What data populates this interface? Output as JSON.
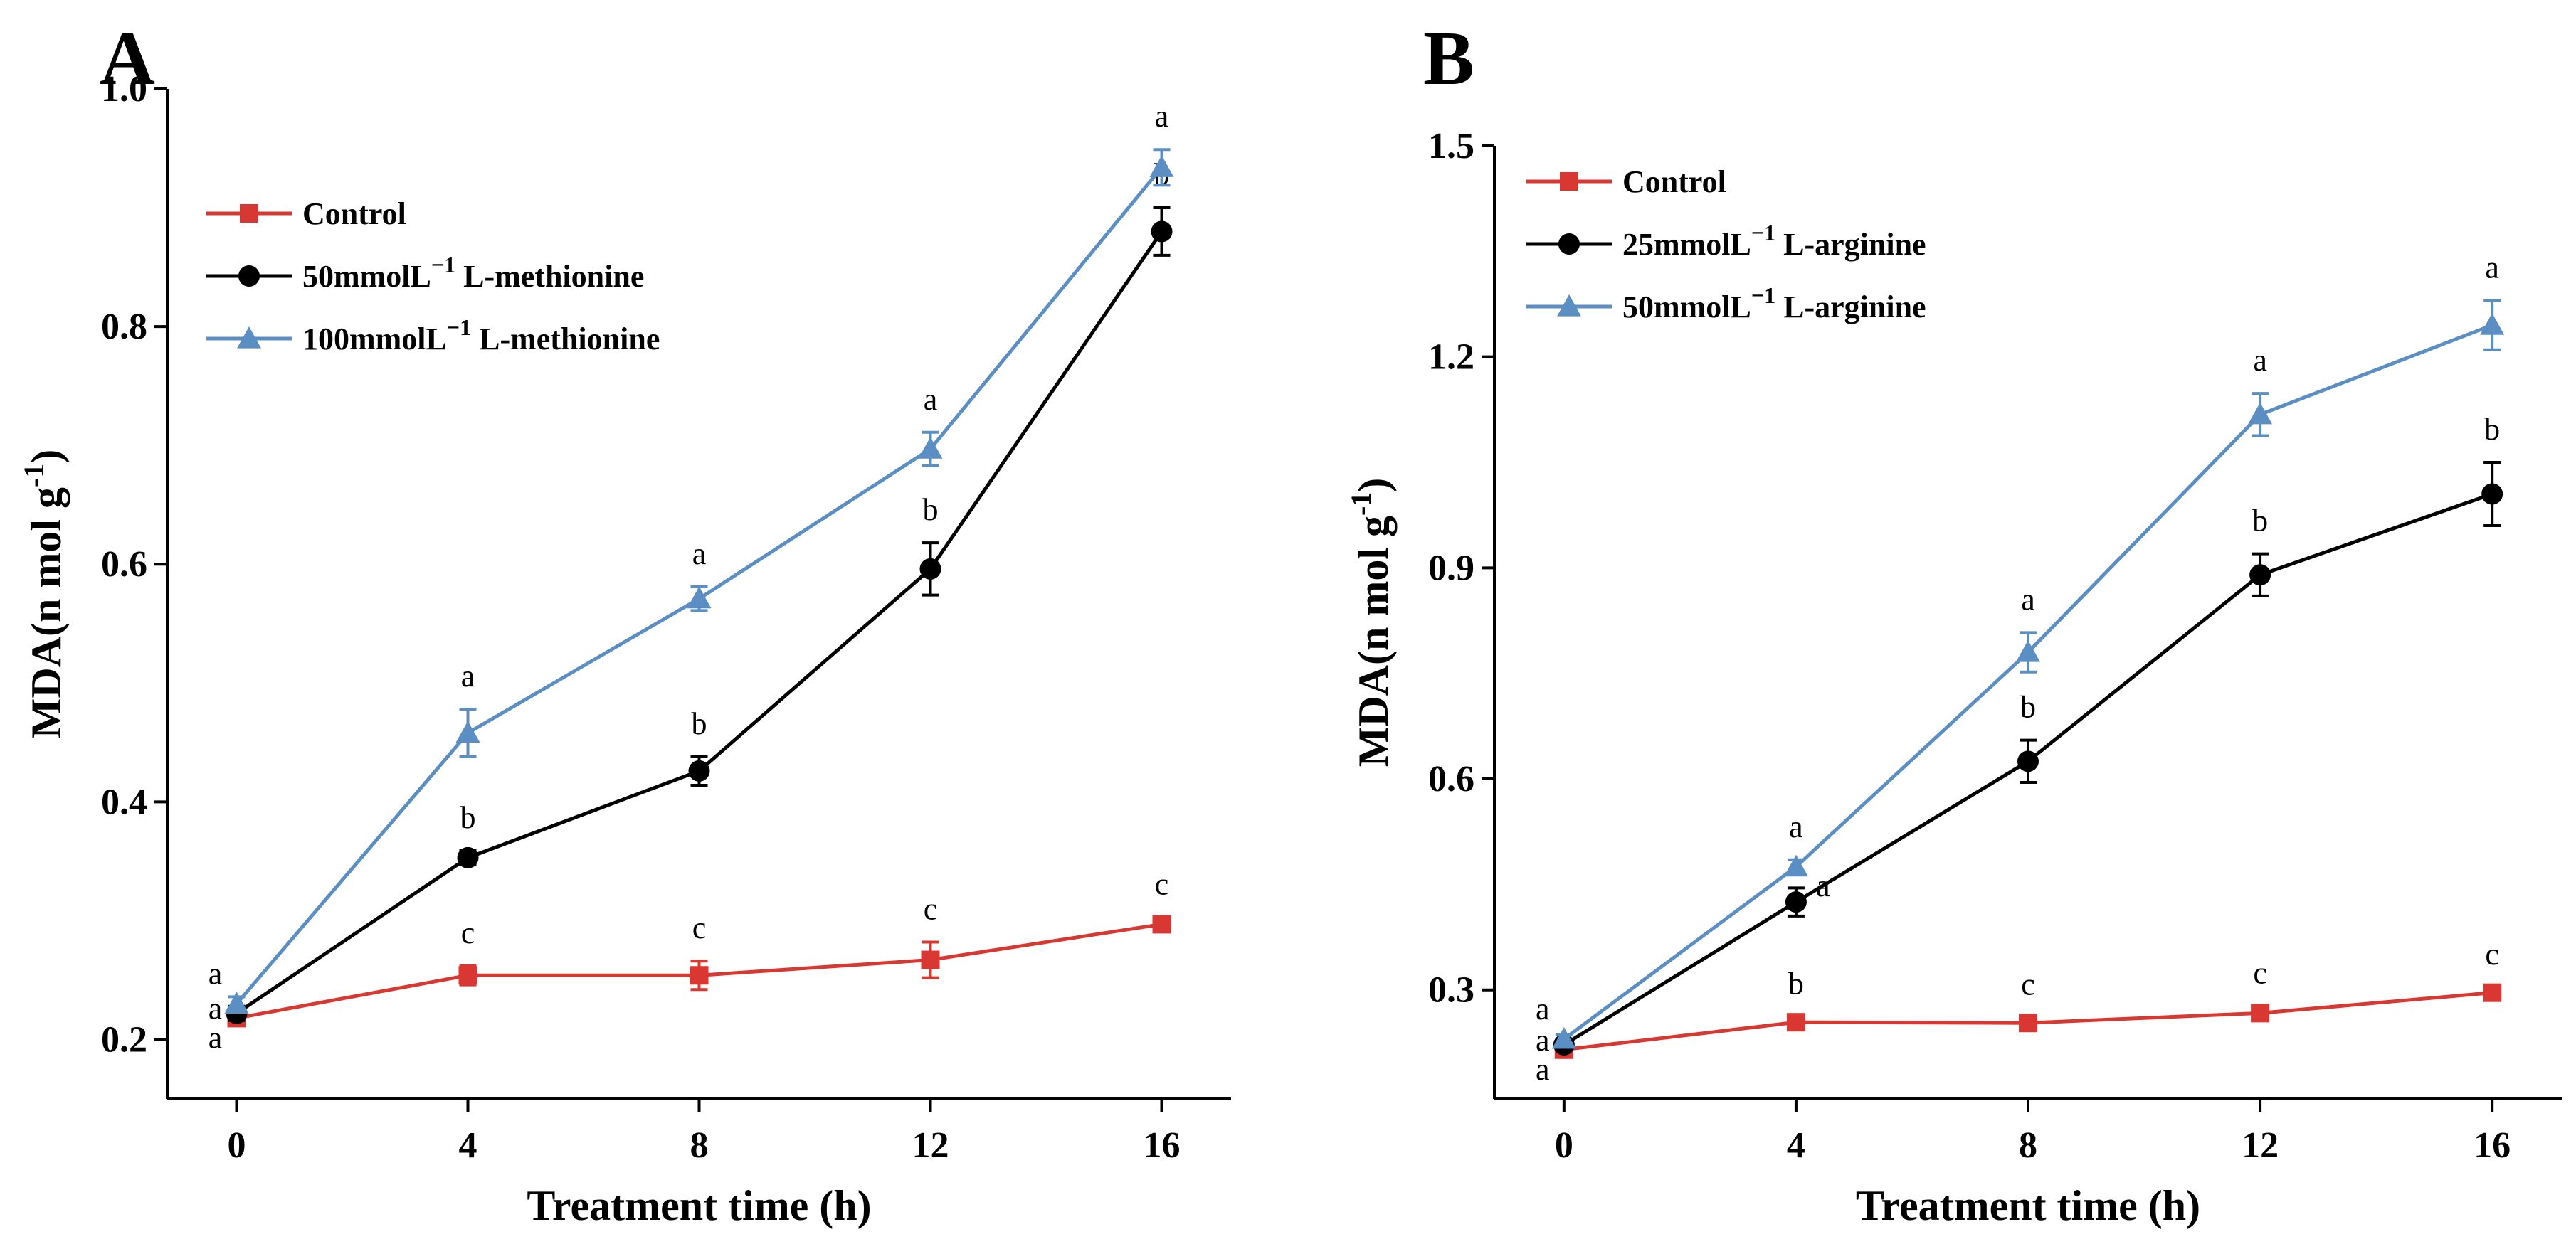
{
  "colors": {
    "control": "#d93731",
    "mid": "#000000",
    "high": "#5b8fc4"
  },
  "chart_data": [
    {
      "type": "line",
      "panel": "A",
      "xlabel": "Treatment time (h)",
      "ylabel": "MDA(n mol g",
      "ylabel_sup": "-1",
      "ylabel_close": ")",
      "x": [
        0,
        4,
        8,
        12,
        16
      ],
      "xticks": [
        "0",
        "4",
        "8",
        "12",
        "16"
      ],
      "xlim": [
        -1.2,
        17.2
      ],
      "ylim": [
        0.15,
        1.0
      ],
      "yticks": [
        "0.2",
        "0.4",
        "0.6",
        "0.8",
        "1.0"
      ],
      "grid": false,
      "legend_position": "top-left",
      "series": [
        {
          "name": "Control",
          "legend_pre": "Control",
          "legend_sup": "",
          "legend_post": "",
          "marker": "square",
          "color": "#d93731",
          "values": [
            0.218,
            0.254,
            0.254,
            0.267,
            0.297
          ],
          "errors": [
            0.006,
            0.008,
            0.012,
            0.015,
            0.006
          ],
          "labels": [
            "a",
            "c",
            "c",
            "c",
            "c"
          ]
        },
        {
          "name": "50mmolL−1 L-methionine",
          "legend_pre": "50mmolL",
          "legend_sup": "−1",
          "legend_post": " L-methionine",
          "marker": "circle",
          "color": "#000000",
          "values": [
            0.222,
            0.353,
            0.426,
            0.596,
            0.88
          ],
          "errors": [
            0.006,
            0.006,
            0.012,
            0.022,
            0.02
          ],
          "labels": [
            "a",
            "b",
            "b",
            "b",
            "b"
          ]
        },
        {
          "name": "100mmolL−1 L-methionine",
          "legend_pre": "100mmolL",
          "legend_sup": "−1",
          "legend_post": " L-methionine",
          "marker": "triangle",
          "color": "#5b8fc4",
          "values": [
            0.23,
            0.458,
            0.571,
            0.697,
            0.934
          ],
          "errors": [
            0.006,
            0.02,
            0.01,
            0.014,
            0.015
          ],
          "labels": [
            "a",
            "a",
            "a",
            "a",
            "a"
          ]
        }
      ]
    },
    {
      "type": "line",
      "panel": "B",
      "xlabel": "Treatment time (h)",
      "ylabel": "MDA(n mol g",
      "ylabel_sup": "-1",
      "ylabel_close": ")",
      "x": [
        0,
        4,
        8,
        12,
        16
      ],
      "xticks": [
        "0",
        "4",
        "8",
        "12",
        "16"
      ],
      "xlim": [
        -1.2,
        17.2
      ],
      "ylim": [
        0.145,
        1.5
      ],
      "yticks": [
        "0.3",
        "0.6",
        "0.9",
        "1.2",
        "1.5"
      ],
      "grid": false,
      "legend_position": "top-left",
      "series": [
        {
          "name": "Control",
          "legend_pre": "Control",
          "legend_sup": "",
          "legend_post": "",
          "marker": "square",
          "color": "#d93731",
          "values": [
            0.215,
            0.254,
            0.253,
            0.267,
            0.296
          ],
          "errors": [
            0.006,
            0.008,
            0.008,
            0.01,
            0.008
          ],
          "labels": [
            "a",
            "b",
            "c",
            "c",
            "c"
          ]
        },
        {
          "name": "25mmolL−1 L-arginine",
          "legend_pre": "25mmolL",
          "legend_sup": "−1",
          "legend_post": " L-arginine",
          "marker": "circle",
          "color": "#000000",
          "values": [
            0.222,
            0.425,
            0.625,
            0.89,
            1.005
          ],
          "errors": [
            0.006,
            0.02,
            0.03,
            0.03,
            0.045
          ],
          "labels": [
            "a",
            "a",
            "b",
            "b",
            "b"
          ]
        },
        {
          "name": "50mmolL−1 L-arginine",
          "legend_pre": "50mmolL",
          "legend_sup": "−1",
          "legend_post": " L-arginine",
          "marker": "triangle",
          "color": "#5b8fc4",
          "values": [
            0.23,
            0.475,
            0.78,
            1.118,
            1.245
          ],
          "errors": [
            0.006,
            0.01,
            0.028,
            0.03,
            0.035
          ],
          "labels": [
            "a",
            "a",
            "a",
            "a",
            "a"
          ]
        }
      ]
    }
  ]
}
